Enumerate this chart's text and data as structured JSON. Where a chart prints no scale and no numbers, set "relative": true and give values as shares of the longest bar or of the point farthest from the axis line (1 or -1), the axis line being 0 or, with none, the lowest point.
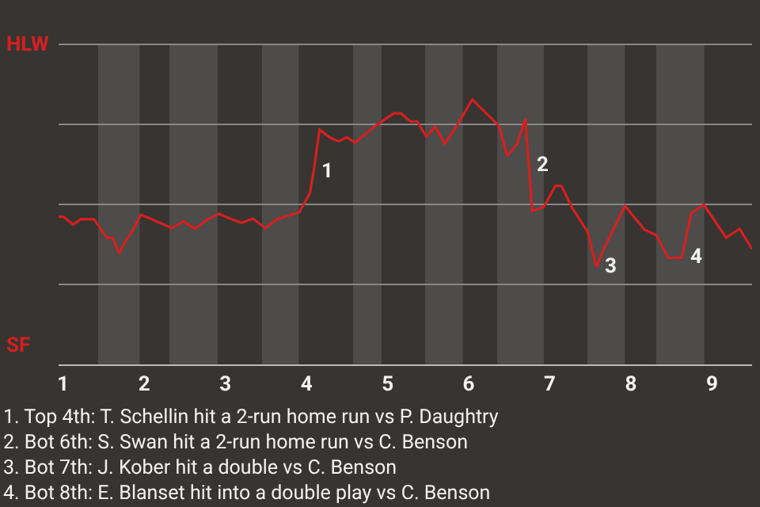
{
  "chart_data": {
    "type": "line",
    "relative": true,
    "x": [
      0.944,
      1.01,
      1.125,
      1.218,
      1.379,
      1.542,
      1.611,
      1.69,
      1.774,
      1.843,
      1.958,
      2.048,
      2.34,
      2.483,
      2.626,
      2.786,
      2.921,
      3.079,
      3.198,
      3.34,
      3.493,
      3.636,
      3.912,
      4.043,
      4.087,
      4.161,
      4.283,
      4.394,
      4.5,
      4.598,
      4.796,
      4.857,
      5.074,
      5.167,
      5.278,
      5.365,
      5.476,
      5.587,
      5.704,
      5.846,
      6.043,
      6.37,
      6.476,
      6.598,
      6.698,
      6.783,
      6.926,
      7.069,
      7.143,
      7.278,
      7.463,
      7.574,
      7.667,
      7.926,
      8.167,
      8.31,
      8.46,
      8.626,
      8.745,
      8.898,
      9.174,
      9.34,
      9.493
    ],
    "series": [
      {
        "color": "#d42020",
        "values": [
          0.558,
          0.556,
          0.528,
          0.548,
          0.548,
          0.478,
          0.478,
          0.419,
          0.469,
          0.498,
          0.564,
          0.554,
          0.514,
          0.539,
          0.512,
          0.548,
          0.568,
          0.548,
          0.534,
          0.55,
          0.514,
          0.548,
          0.574,
          0.647,
          0.727,
          0.886,
          0.857,
          0.842,
          0.857,
          0.837,
          0.886,
          0.901,
          0.947,
          0.947,
          0.917,
          0.917,
          0.861,
          0.897,
          0.833,
          0.897,
          1,
          0.901,
          0.787,
          0.833,
          0.926,
          0.579,
          0.594,
          0.674,
          0.674,
          0.589,
          0.502,
          0.368,
          0.438,
          0.598,
          0.508,
          0.488,
          0.402,
          0.402,
          0.572,
          0.603,
          0.478,
          0.512,
          0.435
        ]
      }
    ],
    "xlim": [
      0.944,
      9.493
    ],
    "xticks": [
      1,
      2,
      3,
      4,
      5,
      6,
      7,
      8,
      9
    ],
    "grid": true,
    "marker": "none",
    "line_style": "solid",
    "bands": [
      {
        "axis": "x",
        "from": 1.431,
        "to": 1.944,
        "color": "#4d4c4a"
      },
      {
        "axis": "x",
        "from": 2.31,
        "to": 2.905,
        "color": "#4d4c4a"
      },
      {
        "axis": "x",
        "from": 3.452,
        "to": 3.905,
        "color": "#4d4c4a"
      },
      {
        "axis": "x",
        "from": 4.574,
        "to": 4.926,
        "color": "#4d4c4a"
      },
      {
        "axis": "x",
        "from": 5.463,
        "to": 5.926,
        "color": "#4d4c4a"
      },
      {
        "axis": "x",
        "from": 6.352,
        "to": 6.926,
        "color": "#4d4c4a"
      },
      {
        "axis": "x",
        "from": 7.463,
        "to": 7.926,
        "color": "#4d4c4a"
      },
      {
        "axis": "x",
        "from": 8.31,
        "to": 8.905,
        "color": "#4d4c4a"
      }
    ],
    "annotations": [
      "HLW",
      "SF",
      {
        "text": "1",
        "x": 4.087,
        "y": 0.727
      },
      {
        "text": "2",
        "x": 6.7405,
        "y": 0.7525
      },
      {
        "text": "3",
        "x": 7.574,
        "y": 0.368
      },
      {
        "text": "4",
        "x": 8.626,
        "y": 0.402
      },
      "1. Top 4th: T. Schellin hit a 2-run home run vs P. Daughtry",
      "2. Bot 6th: S. Swan hit a 2-run home run vs C. Benson",
      "3. Bot 7th: J. Kober hit a double vs C. Benson",
      "4. Bot 8th: E. Blanset hit into a double play vs C. Benson"
    ]
  }
}
